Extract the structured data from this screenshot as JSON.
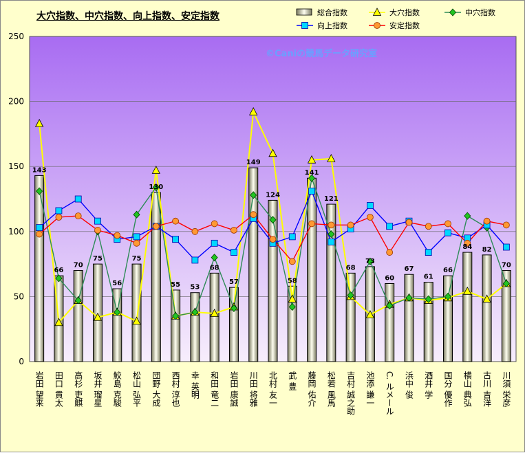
{
  "title": "大穴指数、中穴指数、向上指数、安定指数",
  "watermark": "©Caniの競馬データ研究室",
  "legend": [
    "総合指数",
    "大穴指数",
    "中穴指数",
    "向上指数",
    "安定指数"
  ],
  "chart_data": {
    "type": "bar",
    "categories": [
      "岩田 望来",
      "田口 貫太",
      "高杉 吏麒",
      "坂井 瑠星",
      "鮫島 克駿",
      "松山 弘平",
      "団野 大成",
      "西村 淳也",
      "幸 英明",
      "和田 竜二",
      "岩田 康誠",
      "川田 将雅",
      "北村 友一",
      "武 豊",
      "藤岡 佑介",
      "松若 風馬",
      "吉村 誠之助",
      "池添 謙一",
      "C. ルメール",
      "浜中 俊",
      "酒井 学",
      "国分 優作",
      "横山 典弘",
      "古川 吉洋",
      "川須 栄彦"
    ],
    "ylim": [
      0,
      250
    ],
    "yticks": [
      0,
      50,
      100,
      150,
      200,
      250
    ],
    "grid": true,
    "legend_position": "top-right",
    "series": [
      {
        "name": "総合指数",
        "type": "bar",
        "color": "#f5f5dc",
        "show_labels": true,
        "values": [
          143,
          66,
          70,
          75,
          56,
          75,
          130,
          55,
          53,
          68,
          57,
          149,
          124,
          58,
          141,
          121,
          68,
          73,
          60,
          67,
          61,
          66,
          84,
          82,
          70
        ]
      },
      {
        "name": "大穴指数",
        "type": "line",
        "color": "#ffff00",
        "marker": "triangle",
        "values": [
          183,
          30,
          47,
          34,
          38,
          31,
          147,
          35,
          38,
          37,
          42,
          192,
          160,
          48,
          155,
          156,
          50,
          36,
          44,
          49,
          47,
          49,
          54,
          48,
          60
        ]
      },
      {
        "name": "中穴指数",
        "type": "line",
        "color": "#2e8b57",
        "marker": "diamond",
        "values": [
          131,
          64,
          47,
          100,
          38,
          113,
          134,
          35,
          38,
          80,
          41,
          128,
          109,
          42,
          141,
          98,
          51,
          77,
          43,
          49,
          48,
          50,
          112,
          103,
          60
        ]
      },
      {
        "name": "向上指数",
        "type": "line",
        "color": "#0000ff",
        "marker": "square",
        "values": [
          103,
          116,
          125,
          108,
          94,
          96,
          104,
          94,
          78,
          91,
          84,
          110,
          91,
          96,
          131,
          92,
          102,
          120,
          104,
          108,
          84,
          99,
          95,
          105,
          88
        ]
      },
      {
        "name": "安定指数",
        "type": "line",
        "color": "#ff0000",
        "marker": "circle",
        "values": [
          98,
          111,
          112,
          101,
          97,
          91,
          104,
          108,
          100,
          106,
          101,
          113,
          94,
          77,
          106,
          105,
          105,
          111,
          84,
          107,
          104,
          106,
          91,
          108,
          105
        ]
      }
    ]
  }
}
